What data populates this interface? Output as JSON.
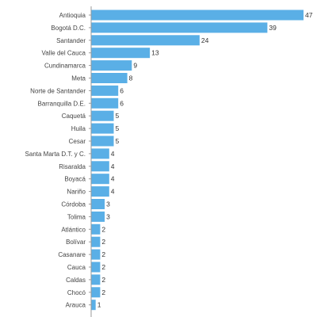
{
  "chart_data": {
    "type": "bar",
    "orientation": "horizontal",
    "title": "",
    "xlabel": "",
    "ylabel": "",
    "xlim": [
      0,
      47
    ],
    "grid": false,
    "legend": "none",
    "bar_color": "#5aafe6",
    "categories": [
      "Antioquia",
      "Bogotá D.C.",
      "Santander",
      "Valle del Cauca",
      "Cundinamarca",
      "Meta",
      "Norte de Santander",
      "Barranquilla D.E.",
      "Caquetá",
      "Huila",
      "Cesar",
      "Santa Marta D.T. y C.",
      "Risaralda",
      "Boyacá",
      "Nariño",
      "Córdoba",
      "Tolima",
      "Atlántico",
      "Bolívar",
      "Casanare",
      "Cauca",
      "Caldas",
      "Chocó",
      "Arauca"
    ],
    "values": [
      47,
      39,
      24,
      13,
      9,
      8,
      6,
      6,
      5,
      5,
      5,
      4,
      4,
      4,
      4,
      3,
      3,
      2,
      2,
      2,
      2,
      2,
      2,
      1
    ]
  }
}
